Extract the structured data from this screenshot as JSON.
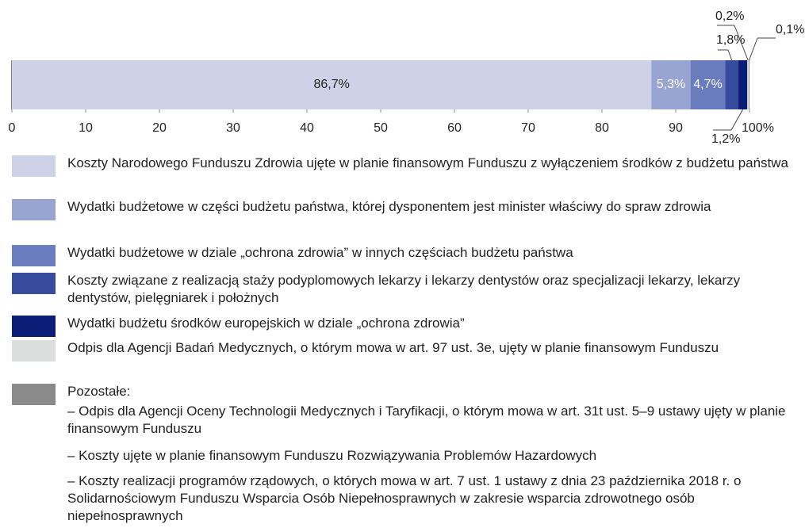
{
  "chart_data": {
    "type": "stacked_bar",
    "xlim": [
      0,
      100
    ],
    "xticks": [
      0,
      10,
      20,
      30,
      40,
      50,
      60,
      70,
      80,
      90,
      {
        "value": 100,
        "label": "100%"
      }
    ],
    "series": [
      {
        "name": "Koszty Narodowego Funduszu Zdrowia ujęte w planie finansowym Funduszu z wyłączeniem środków z budżetu państwa",
        "color": "#cdd2e8",
        "values": [
          86.7
        ],
        "value_labels": [
          "86,7%"
        ]
      },
      {
        "name": "Wydatki budżetowe w części budżetu państwa, której dysponentem jest minister właściwy do spraw zdrowia",
        "color": "#98a4d1",
        "values": [
          5.3
        ],
        "value_labels": [
          "5,3%"
        ]
      },
      {
        "name": "Wydatki budżetowe w dziale „ochrona zdrowia” w innych częściach budżetu państwa",
        "color": "#6a7cbd",
        "values": [
          4.7
        ],
        "value_labels": [
          "4,7%"
        ]
      },
      {
        "name": "Koszty związane z realizacją staży podyplomowych lekarzy i lekarzy dentystów oraz specjalizacji lekarzy, lekarzy dentystów, pielęgniarek i położnych",
        "color": "#374c9c",
        "values": [
          1.8
        ],
        "value_labels": [
          "1,8%"
        ]
      },
      {
        "name": "Wydatki budżetu środków europejskich w dziale „ochrona zdrowia”",
        "color": "#0c1d78",
        "values": [
          1.2
        ],
        "value_labels": [
          "1,2%"
        ]
      },
      {
        "name": "Odpis dla Agencji Badań Medycznych, o którym mowa w art. 97 ust. 3e, ujęty w planie finansowym Funduszu",
        "color": "#dcdddd",
        "values": [
          0.2
        ],
        "value_labels": [
          "0,2%"
        ]
      },
      {
        "name": "Pozostałe:",
        "color": "#8a8a8a",
        "values": [
          0.1
        ],
        "value_labels": [
          "0,1%"
        ],
        "items": [
          "– Odpis dla Agencji Oceny Technologii Medycznych i Taryfikacji, o którym mowa w art. 31t ust. 5–9 ustawy ujęty w planie finansowym Funduszu",
          "– Koszty ujęte w planie finansowym Funduszu Rozwiązywania Problemów Hazardowych",
          "– Koszty realizacji programów rządowych, o których mowa w art. 7 ust. 1 ustawy z dnia 23 października 2018 r. o Solidarnościowym Funduszu Wsparcia Osób Niepełnosprawnych w zakresie wsparcia zdrowotnego osób niepełnosprawnych"
        ]
      }
    ]
  }
}
